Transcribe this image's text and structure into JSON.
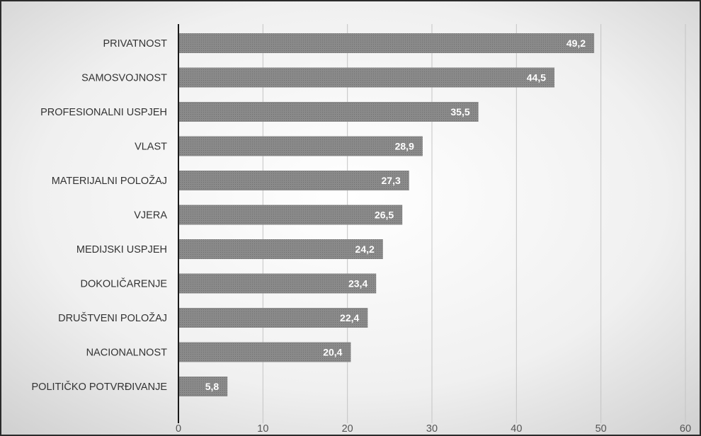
{
  "chart_data": {
    "type": "bar",
    "orientation": "horizontal",
    "categories": [
      "PRIVATNOST",
      "SAMOSVOJNOST",
      "PROFESIONALNI USPJEH",
      "VLAST",
      "MATERIJALNI POLOŽAJ",
      "VJERA",
      "MEDIJSKI USPJEH",
      "DOKOLIČARENJE",
      "DRUŠTVENI POLOŽAJ",
      "NACIONALNOST",
      "POLITIČKO POTVRĐIVANJE"
    ],
    "values": [
      49.2,
      44.5,
      35.5,
      28.9,
      27.3,
      26.5,
      24.2,
      23.4,
      22.4,
      20.4,
      5.8
    ],
    "value_labels": [
      "49,2",
      "44,5",
      "35,5",
      "28,9",
      "27,3",
      "26,5",
      "24,2",
      "23,4",
      "22,4",
      "20,4",
      "5,8"
    ],
    "xlim": [
      0,
      60
    ],
    "x_ticks": [
      0,
      10,
      20,
      30,
      40,
      50,
      60
    ],
    "x_tick_labels": [
      "0",
      "10",
      "20",
      "30",
      "40",
      "50",
      "60"
    ],
    "grid": true,
    "legend": "none",
    "colors": {
      "bar": "#8a8a8a",
      "bar_dot": "#6f6f6f",
      "grid": "#c4c4c4",
      "axis": "#1a1a1a",
      "background_center": "#ffffff",
      "background_edge": "#cfcfcf"
    }
  }
}
